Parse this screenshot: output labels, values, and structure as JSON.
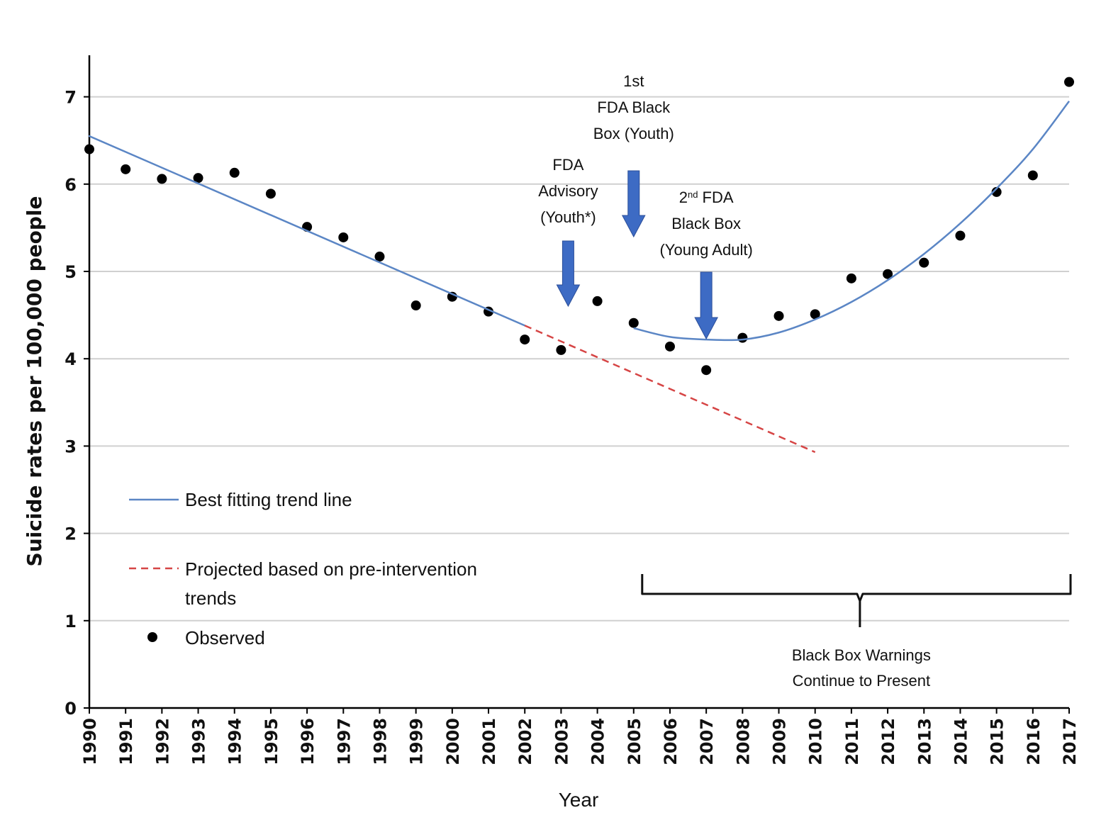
{
  "chart_data": {
    "type": "line",
    "ylabel": "Suicide rates per 100,000 people",
    "xlabel": "Year",
    "ylim": [
      0,
      7.5
    ],
    "yticks": [
      "0",
      "1",
      "2",
      "3",
      "4",
      "5",
      "6",
      "7"
    ],
    "x": [
      "1990",
      "1991",
      "1992",
      "1993",
      "1994",
      "1995",
      "1996",
      "1997",
      "1998",
      "1999",
      "2000",
      "2001",
      "2002",
      "2003",
      "2004",
      "2005",
      "2006",
      "2007",
      "2008",
      "2009",
      "2010",
      "2011",
      "2012",
      "2013",
      "2014",
      "2015",
      "2016",
      "2017"
    ],
    "grid": "horizontal",
    "legend_position": "lower-left",
    "series": [
      {
        "name": "Observed",
        "kind": "scatter",
        "color": "#000000",
        "values": [
          6.4,
          6.17,
          6.06,
          6.07,
          6.13,
          5.89,
          5.51,
          5.39,
          5.17,
          4.61,
          4.71,
          4.54,
          4.22,
          4.1,
          4.66,
          4.41,
          4.14,
          3.87,
          4.24,
          4.49,
          4.51,
          4.92,
          4.97,
          5.1,
          5.41,
          5.91,
          6.1,
          7.17
        ]
      },
      {
        "name": "Best fitting trend line",
        "kind": "line",
        "color": "#5b86c5",
        "segments": [
          {
            "x": [
              "1990",
              "2002"
            ],
            "y": [
              6.55,
              4.38
            ]
          },
          {
            "x": [
              "2005",
              "2006",
              "2007",
              "2008",
              "2009",
              "2010",
              "2011",
              "2012",
              "2013",
              "2014",
              "2015",
              "2016",
              "2017"
            ],
            "y": [
              4.35,
              4.25,
              4.22,
              4.22,
              4.3,
              4.45,
              4.65,
              4.9,
              5.2,
              5.55,
              5.95,
              6.4,
              6.95
            ]
          }
        ]
      },
      {
        "name": "Projected based on pre-intervention trends",
        "kind": "dashed-line",
        "color": "#d64545",
        "segments": [
          {
            "x": [
              "2002",
              "2010"
            ],
            "y": [
              4.38,
              2.93
            ]
          }
        ]
      }
    ],
    "legend": [
      {
        "label": "Best fitting trend line",
        "style": "solid"
      },
      {
        "label": "Projected based on pre-intervention",
        "label2": "trends",
        "style": "dashed"
      },
      {
        "label": "Observed",
        "style": "dot"
      }
    ],
    "annotations": [
      {
        "x": "2003",
        "lines": [
          "FDA",
          "Advisory",
          "(Youth*)"
        ],
        "arrow_color": "#3d6bc4"
      },
      {
        "x": "2005",
        "lines": [
          "1st",
          "FDA Black",
          "Box (Youth)"
        ],
        "arrow_color": "#3d6bc4"
      },
      {
        "x": "2007",
        "lines": [
          "2nd FDA",
          "Black Box",
          "(Young Adult)"
        ],
        "arrow_color": "#3d6bc4"
      }
    ],
    "brace": {
      "from": "2005",
      "to": "2017",
      "lines": [
        "Black Box Warnings",
        "Continue to Present"
      ]
    }
  }
}
